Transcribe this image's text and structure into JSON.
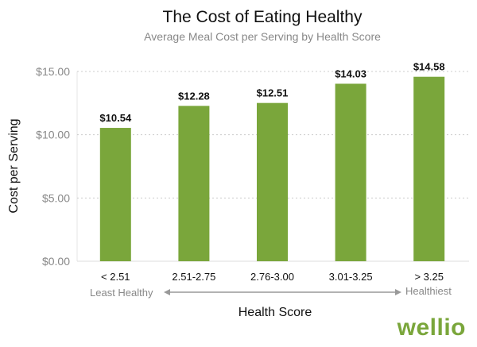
{
  "chart_data": {
    "type": "bar",
    "title": "The Cost of Eating Healthy",
    "subtitle": "Average Meal Cost per Serving by Health Score",
    "xlabel": "Health Score",
    "ylabel": "Cost per Serving",
    "categories": [
      "< 2.51",
      "2.51-2.75",
      "2.76-3.00",
      "3.01-3.25",
      "> 3.25"
    ],
    "values": [
      10.54,
      12.28,
      12.51,
      14.03,
      14.58
    ],
    "data_labels": [
      "$10.54",
      "$12.28",
      "$12.51",
      "$14.03",
      "$14.58"
    ],
    "ylim": [
      0,
      15
    ],
    "yticks": [
      0,
      5,
      10,
      15
    ],
    "ytick_labels": [
      "$0.00",
      "$5.00",
      "$10.00",
      "$15.00"
    ],
    "grid": "horizontal dotted",
    "bar_color": "#7aa63b",
    "annotations": {
      "left": "Least Healthy",
      "right": "Healthiest"
    }
  },
  "brand": {
    "logo": "wellio"
  }
}
